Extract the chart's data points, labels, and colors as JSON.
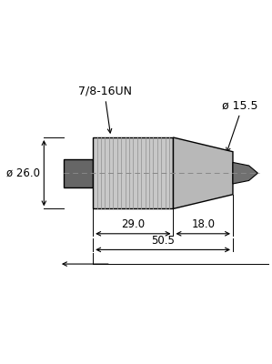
{
  "bg_color": "#ffffff",
  "knurl_color": "#c8c8c8",
  "body_taper_color": "#b8b8b8",
  "nut_color": "#666666",
  "cable_color": "#707070",
  "line_color": "#000000",
  "knurl_line_color": "#999999",
  "label_78_16UN": "7/8-16UN",
  "label_dia26": "ø 26.0",
  "label_dia15": "ø 15.5",
  "label_29": "29.0",
  "label_18": "18.0",
  "label_50": "50.5",
  "font_size": 8.5,
  "fig_w": 2.99,
  "fig_h": 4.0,
  "dpi": 100
}
